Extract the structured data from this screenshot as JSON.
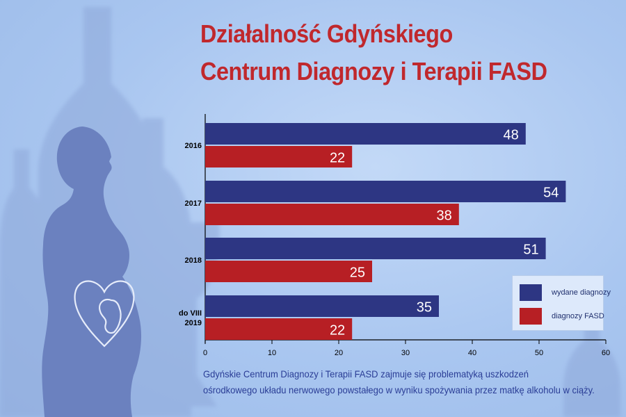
{
  "title": {
    "line1": "Działalność Gdyńskiego",
    "line2": "Centrum Diagnozy i Terapii FASD"
  },
  "caption": {
    "line1": "Gdyńskie Centrum Diagnozy i Terapii FASD zajmuje się problematyką uszkodzeń",
    "line2": "ośrodkowego układu nerwowego powstałego w wyniku spożywania przez matkę alkoholu w ciąży."
  },
  "colors": {
    "series_blue": "#2d3683",
    "series_red": "#b71f24",
    "title_red": "#c0282d"
  },
  "chart_data": {
    "type": "bar",
    "orientation": "horizontal",
    "categories": [
      [
        "2016"
      ],
      [
        "2017"
      ],
      [
        "2018"
      ],
      [
        "do VIII",
        "2019"
      ]
    ],
    "series": [
      {
        "name": "wydane diagnozy",
        "color": "#2d3683",
        "values": [
          48,
          54,
          51,
          35
        ]
      },
      {
        "name": "diagnozy FASD",
        "color": "#b71f24",
        "values": [
          22,
          38,
          25,
          22
        ]
      }
    ],
    "xlim": [
      0,
      60
    ],
    "xticks": [
      0,
      10,
      20,
      30,
      40,
      50,
      60
    ],
    "grid": false,
    "legend": "bottom-right",
    "data_labels": true
  }
}
